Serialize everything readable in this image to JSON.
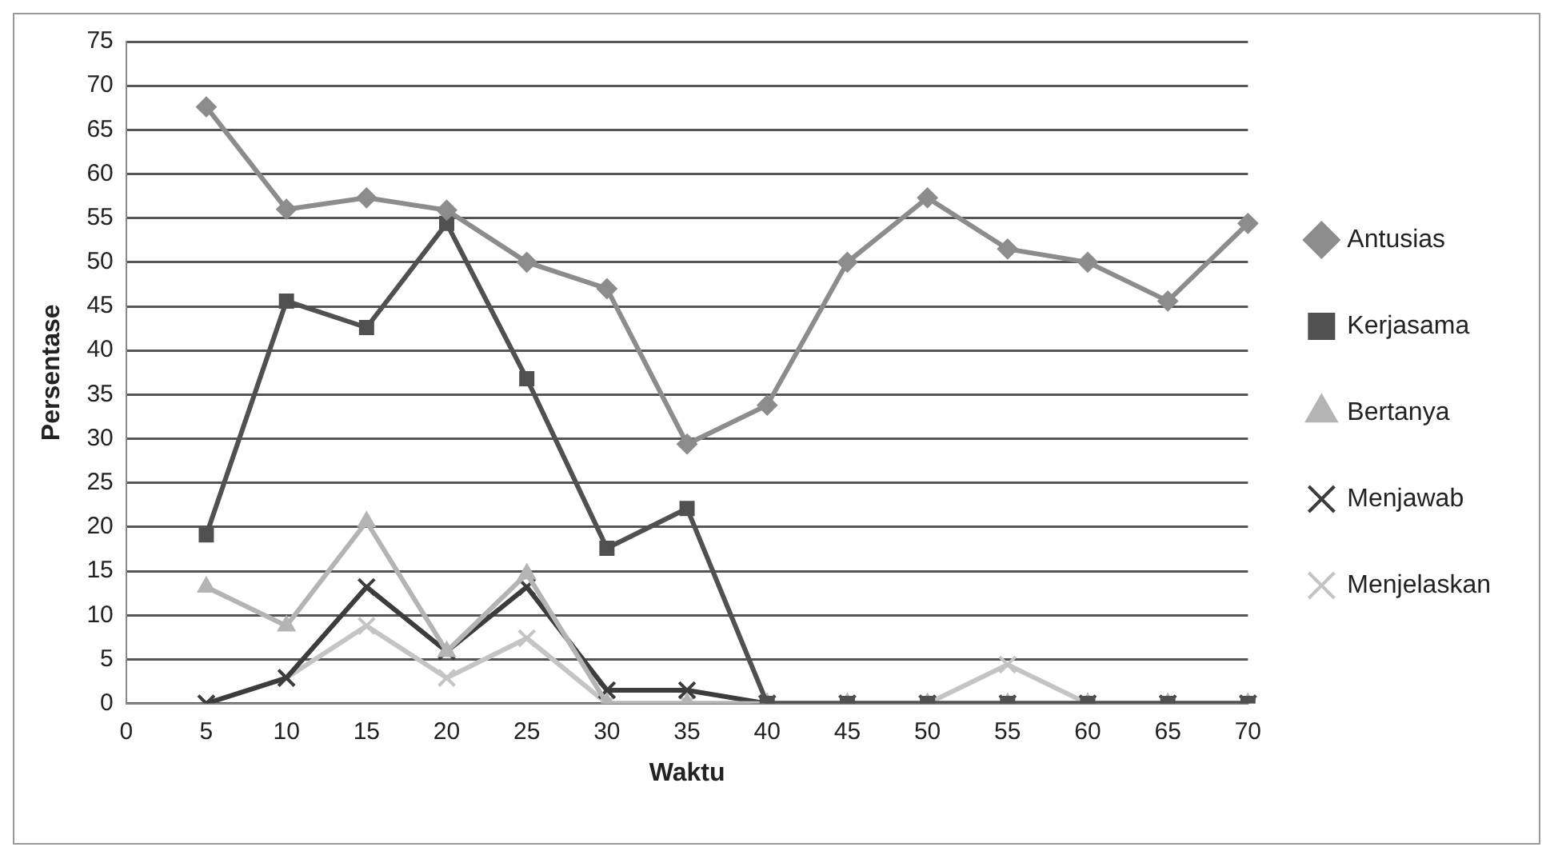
{
  "chart_data": {
    "type": "line",
    "xlabel": "Waktu",
    "ylabel": "Persentase",
    "categories": [
      "0",
      "5",
      "10",
      "15",
      "20",
      "25",
      "30",
      "35",
      "40",
      "45",
      "50",
      "55",
      "60",
      "65",
      "70"
    ],
    "series": [
      {
        "name": "Antusias",
        "color": "#8c8c8c",
        "marker": "diamond",
        "values": [
          null,
          67.6,
          56,
          57.3,
          55.9,
          50,
          47,
          29.4,
          33.8,
          50,
          57.3,
          51.5,
          50,
          45.6,
          54.4
        ]
      },
      {
        "name": "Kerjasama",
        "color": "#505050",
        "marker": "square",
        "values": [
          null,
          19.1,
          45.6,
          42.6,
          54.4,
          36.8,
          17.6,
          22.1,
          0,
          0,
          0,
          0,
          0,
          0,
          0
        ]
      },
      {
        "name": "Bertanya",
        "color": "#b4b4b4",
        "marker": "triangle",
        "values": [
          null,
          13.2,
          8.8,
          20.6,
          5.9,
          14.7,
          0,
          0,
          0,
          0,
          0,
          0,
          0,
          0,
          0
        ]
      },
      {
        "name": "Menjawab",
        "color": "#3c3c3c",
        "marker": "cross",
        "values": [
          null,
          0,
          2.9,
          13.2,
          5.9,
          13.2,
          1.5,
          1.5,
          0,
          0,
          0,
          0,
          0,
          0,
          0
        ]
      },
      {
        "name": "Menjelaskan",
        "color": "#c4c4c4",
        "marker": "cross",
        "values": [
          null,
          0,
          2.9,
          8.8,
          2.9,
          7.4,
          0,
          0,
          0,
          0,
          0,
          4.4,
          0,
          0,
          0
        ]
      }
    ],
    "ylim": [
      0,
      75
    ],
    "yticks": [
      0,
      5,
      10,
      15,
      20,
      25,
      30,
      35,
      40,
      45,
      50,
      55,
      60,
      65,
      70,
      75
    ],
    "grid": "y",
    "legend": "right"
  }
}
